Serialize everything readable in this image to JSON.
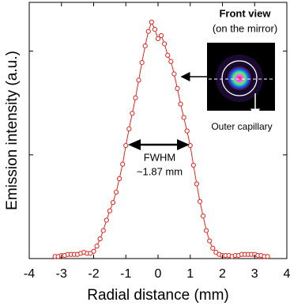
{
  "chart_data": {
    "type": "scatter-line",
    "x_label": "Radial distance (mm)",
    "y_label": "Emission intensity (a.u.)",
    "xlim": [
      -4,
      4
    ],
    "xticks": [
      -4,
      -3,
      -2,
      -1,
      0,
      1,
      2,
      3,
      4
    ],
    "ylim": [
      0,
      2.47
    ],
    "yticks": [
      0,
      1,
      2
    ],
    "ytick_labels": false,
    "grid": false,
    "color": "#e8251f",
    "x": [
      -3.2,
      -3.1,
      -3.0,
      -2.9,
      -2.8,
      -2.7,
      -2.6,
      -2.5,
      -2.4,
      -2.3,
      -2.2,
      -2.1,
      -2.0,
      -1.9,
      -1.8,
      -1.7,
      -1.6,
      -1.5,
      -1.4,
      -1.3,
      -1.2,
      -1.1,
      -1.0,
      -0.9,
      -0.8,
      -0.7,
      -0.6,
      -0.5,
      -0.4,
      -0.3,
      -0.2,
      -0.1,
      0.0,
      0.1,
      0.2,
      0.3,
      0.4,
      0.5,
      0.6,
      0.7,
      0.8,
      0.9,
      1.0,
      1.1,
      1.2,
      1.3,
      1.4,
      1.5,
      1.6,
      1.7,
      1.8,
      1.9,
      2.0,
      2.1,
      2.2,
      2.3,
      2.4,
      2.5,
      2.6,
      2.7,
      2.8,
      2.9,
      3.0,
      3.1,
      3.2,
      3.3,
      3.4
    ],
    "values": [
      0.02,
      0.02,
      0.03,
      0.03,
      0.04,
      0.04,
      0.04,
      0.04,
      0.05,
      0.06,
      0.05,
      0.05,
      0.07,
      0.12,
      0.19,
      0.27,
      0.37,
      0.46,
      0.54,
      0.64,
      0.77,
      0.91,
      1.09,
      1.25,
      1.4,
      1.55,
      1.72,
      1.89,
      2.05,
      2.19,
      2.28,
      2.21,
      2.12,
      2.15,
      2.07,
      1.96,
      1.9,
      1.78,
      1.64,
      1.49,
      1.36,
      1.23,
      1.09,
      0.9,
      0.72,
      0.55,
      0.41,
      0.27,
      0.17,
      0.1,
      0.06,
      0.04,
      0.03,
      0.03,
      0.03,
      0.02,
      0.03,
      0.03,
      0.04,
      0.04,
      0.04,
      0.04,
      0.04,
      0.03,
      0.03,
      0.02,
      0.02
    ],
    "annotations": {
      "fwhm": "FWHM",
      "fwhm_value": "~1.87 mm",
      "inset_title": "Front view",
      "inset_subtitle": "(on the mirror)",
      "inset_label": "Outer capillary"
    }
  }
}
